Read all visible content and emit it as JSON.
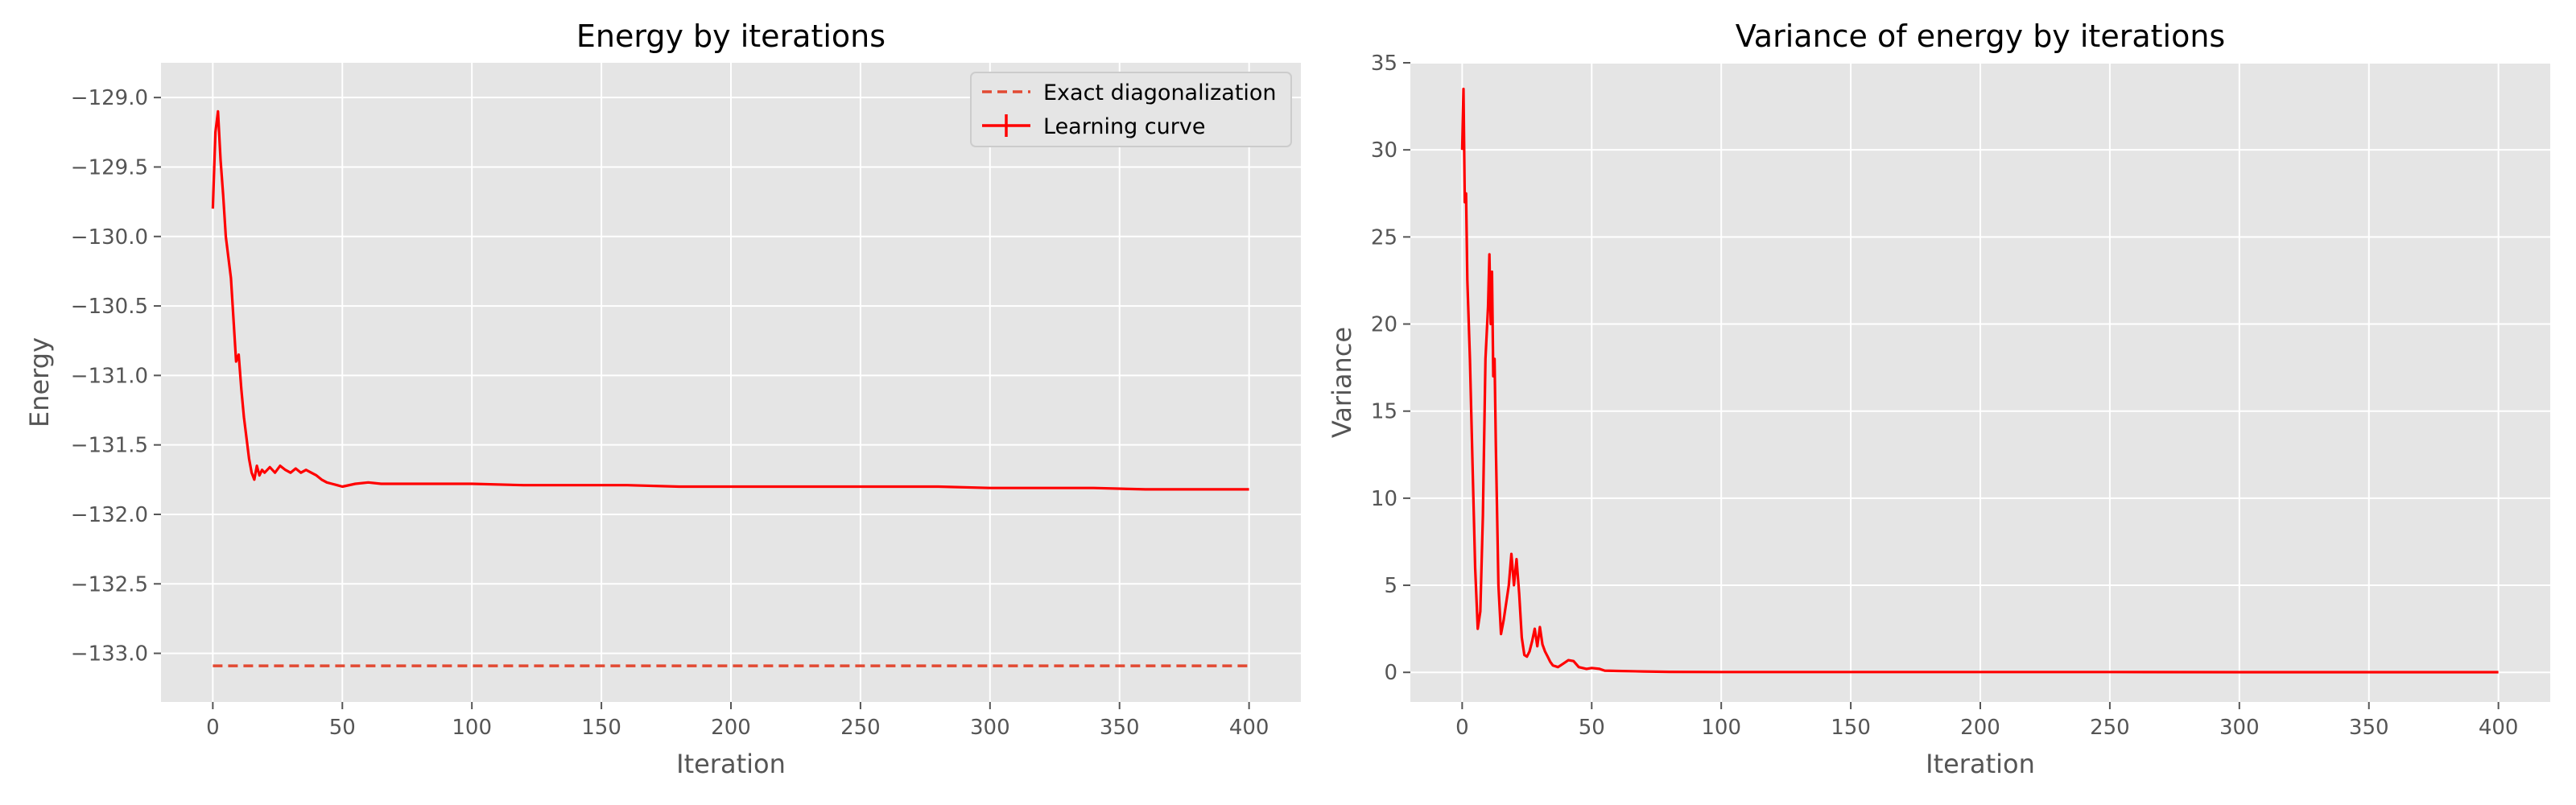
{
  "chart_data": [
    {
      "type": "line",
      "title": "Energy by iterations",
      "xlabel": "Iteration",
      "ylabel": "Energy",
      "xlim": [
        -20,
        420
      ],
      "ylim": [
        -133.35,
        -128.75
      ],
      "grid": true,
      "legend_position": "top-right",
      "x_ticks": [
        0,
        50,
        100,
        150,
        200,
        250,
        300,
        350,
        400
      ],
      "x_tick_labels": [
        "0",
        "50",
        "100",
        "150",
        "200",
        "250",
        "300",
        "350",
        "400"
      ],
      "y_ticks": [
        -129.0,
        -129.5,
        -130.0,
        -130.5,
        -131.0,
        -131.5,
        -132.0,
        -132.5,
        -133.0
      ],
      "y_tick_labels": [
        "−129.0",
        "−129.5",
        "−130.0",
        "−130.5",
        "−131.0",
        "−131.5",
        "−132.0",
        "−132.5",
        "−133.0"
      ],
      "series": [
        {
          "name": "Exact diagonalization",
          "style": "dashed",
          "color": "#e24a33",
          "x": [
            0,
            400
          ],
          "y": [
            -133.09,
            -133.09
          ]
        },
        {
          "name": "Learning curve",
          "style": "solid",
          "color": "#ff0000",
          "x": [
            0,
            1,
            2,
            3,
            4,
            5,
            6,
            7,
            8,
            9,
            10,
            11,
            12,
            13,
            14,
            15,
            16,
            17,
            18,
            19,
            20,
            22,
            24,
            26,
            28,
            30,
            32,
            34,
            36,
            38,
            40,
            42,
            44,
            46,
            48,
            50,
            55,
            60,
            65,
            70,
            75,
            80,
            90,
            100,
            120,
            140,
            160,
            180,
            200,
            220,
            240,
            260,
            280,
            300,
            320,
            340,
            360,
            380,
            400
          ],
          "y": [
            -129.8,
            -129.25,
            -129.1,
            -129.45,
            -129.7,
            -130.0,
            -130.15,
            -130.3,
            -130.6,
            -130.9,
            -130.85,
            -131.1,
            -131.3,
            -131.45,
            -131.6,
            -131.7,
            -131.75,
            -131.65,
            -131.72,
            -131.68,
            -131.7,
            -131.66,
            -131.7,
            -131.65,
            -131.68,
            -131.7,
            -131.67,
            -131.7,
            -131.68,
            -131.7,
            -131.72,
            -131.75,
            -131.77,
            -131.78,
            -131.79,
            -131.8,
            -131.78,
            -131.77,
            -131.78,
            -131.78,
            -131.78,
            -131.78,
            -131.78,
            -131.78,
            -131.79,
            -131.79,
            -131.79,
            -131.8,
            -131.8,
            -131.8,
            -131.8,
            -131.8,
            -131.8,
            -131.81,
            -131.81,
            -131.81,
            -131.82,
            -131.82,
            -131.82
          ]
        }
      ]
    },
    {
      "type": "line",
      "title": "Variance of energy by iterations",
      "xlabel": "Iteration",
      "ylabel": "Variance",
      "xlim": [
        -20,
        420
      ],
      "ylim": [
        -1.7,
        35.0
      ],
      "grid": true,
      "x_ticks": [
        0,
        50,
        100,
        150,
        200,
        250,
        300,
        350,
        400
      ],
      "x_tick_labels": [
        "0",
        "50",
        "100",
        "150",
        "200",
        "250",
        "300",
        "350",
        "400"
      ],
      "y_ticks": [
        0,
        5,
        10,
        15,
        20,
        25,
        30,
        35
      ],
      "y_tick_labels": [
        "0",
        "5",
        "10",
        "15",
        "20",
        "25",
        "30",
        "35"
      ],
      "series": [
        {
          "name": "Variance",
          "style": "solid",
          "color": "#ff0000",
          "x": [
            0,
            0.5,
            1,
            1.5,
            2,
            3,
            4,
            5,
            6,
            7,
            8,
            9,
            10,
            10.5,
            11,
            11.5,
            12,
            12.5,
            13,
            14,
            15,
            16,
            17,
            18,
            19,
            20,
            21,
            22,
            23,
            24,
            25,
            26,
            27,
            28,
            29,
            30,
            31,
            32,
            33,
            34,
            35,
            37,
            39,
            41,
            43,
            45,
            48,
            50,
            53,
            55,
            60,
            70,
            80,
            100,
            150,
            200,
            250,
            300,
            350,
            400
          ],
          "y": [
            30.0,
            33.5,
            27.0,
            27.5,
            22.5,
            18.0,
            12.0,
            6.0,
            2.5,
            3.5,
            9.0,
            18.0,
            21.0,
            24.0,
            20.0,
            23.0,
            17.0,
            18.0,
            13.0,
            5.0,
            2.2,
            3.0,
            4.0,
            5.0,
            6.8,
            5.0,
            6.5,
            4.5,
            2.0,
            1.0,
            0.9,
            1.2,
            1.8,
            2.5,
            1.5,
            2.6,
            1.6,
            1.2,
            0.9,
            0.6,
            0.4,
            0.3,
            0.5,
            0.7,
            0.65,
            0.3,
            0.2,
            0.25,
            0.2,
            0.1,
            0.08,
            0.05,
            0.03,
            0.02,
            0.02,
            0.02,
            0.02,
            0.01,
            0.01,
            0.01
          ]
        }
      ]
    }
  ]
}
